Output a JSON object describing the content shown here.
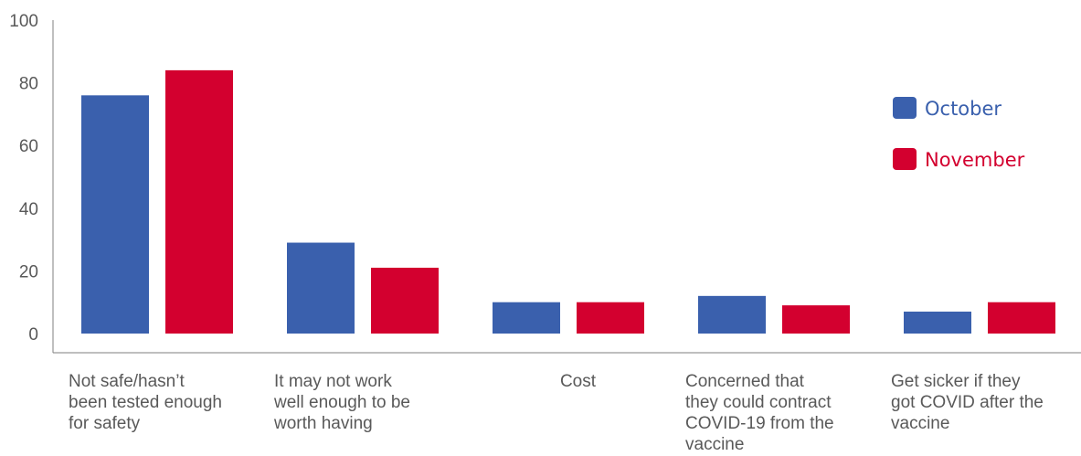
{
  "chart_data": {
    "type": "bar",
    "title": "",
    "xlabel": "",
    "ylabel": "",
    "ylim": [
      0,
      100
    ],
    "yticks": [
      0,
      20,
      40,
      60,
      80,
      100
    ],
    "grid": false,
    "legend_position": "right",
    "categories": [
      [
        "Not safe/hasn’t",
        "been tested enough",
        "for safety"
      ],
      [
        "It may not work",
        "well enough to be",
        "worth having"
      ],
      [
        "Cost"
      ],
      [
        "Concerned that",
        "they could contract",
        "COVID-19 from the",
        "vaccine"
      ],
      [
        "Get sicker if they",
        "got COVID after the",
        "vaccine"
      ]
    ],
    "series": [
      {
        "name": "October",
        "color": "#3a60ad",
        "values": [
          76,
          29,
          10,
          12,
          7
        ]
      },
      {
        "name": "November",
        "color": "#d3002f",
        "values": [
          84,
          21,
          10,
          9,
          10
        ]
      }
    ]
  }
}
